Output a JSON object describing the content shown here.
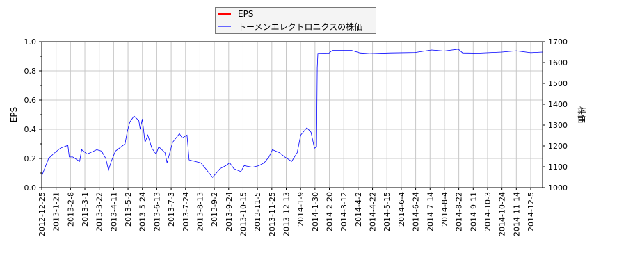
{
  "chart_data": {
    "type": "line",
    "title": "",
    "ylabel": "EPS",
    "y2label": "株価",
    "ylim": [
      0,
      1.0
    ],
    "y2lim": [
      1000,
      1700
    ],
    "yticks": [
      "0.0",
      "0.2",
      "0.4",
      "0.6",
      "0.8",
      "1.0"
    ],
    "y2ticks": [
      "1000",
      "1100",
      "1200",
      "1300",
      "1400",
      "1500",
      "1600",
      "1700"
    ],
    "xticks": [
      "2012-12-25",
      "2013-1-21",
      "2013-2-8",
      "2013-3-1",
      "2013-3-22",
      "2013-4-11",
      "2013-5-2",
      "2013-5-24",
      "2013-6-13",
      "2013-7-3",
      "2013-7-24",
      "2013-8-13",
      "2013-9-2",
      "2013-9-24",
      "2013-10-15",
      "2013-11-5",
      "2013-11-25",
      "2013-12-13",
      "2014-1-9",
      "2014-1-30",
      "2014-2-20",
      "2014-3-12",
      "2014-4-2",
      "2014-4-22",
      "2014-5-15",
      "2014-6-4",
      "2014-6-24",
      "2014-7-14",
      "2014-8-4",
      "2014-8-22",
      "2014-9-11",
      "2014-10-3",
      "2014-10-24",
      "2014-11-14",
      "2014-12-5"
    ],
    "grid": true,
    "legend_placement": "top-center",
    "series": [
      {
        "name": "EPS",
        "color": "#ff0000",
        "axis": "left",
        "points": []
      },
      {
        "name": "トーメンエレクトロニクスの株価",
        "color": "#0000ff",
        "axis": "right",
        "points": [
          [
            "2012-12-25",
            1056
          ],
          [
            "2013-01-04",
            1140
          ],
          [
            "2013-01-12",
            1165
          ],
          [
            "2013-01-21",
            1189
          ],
          [
            "2013-02-01",
            1203
          ],
          [
            "2013-02-03",
            1147
          ],
          [
            "2013-02-08",
            1147
          ],
          [
            "2013-02-18",
            1126
          ],
          [
            "2013-02-21",
            1182
          ],
          [
            "2013-03-01",
            1161
          ],
          [
            "2013-03-15",
            1182
          ],
          [
            "2013-03-22",
            1175
          ],
          [
            "2013-03-28",
            1140
          ],
          [
            "2013-04-01",
            1084
          ],
          [
            "2013-04-05",
            1126
          ],
          [
            "2013-04-11",
            1175
          ],
          [
            "2013-04-25",
            1210
          ],
          [
            "2013-04-28",
            1266
          ],
          [
            "2013-05-02",
            1315
          ],
          [
            "2013-05-08",
            1343
          ],
          [
            "2013-05-15",
            1322
          ],
          [
            "2013-05-17",
            1280
          ],
          [
            "2013-05-20",
            1329
          ],
          [
            "2013-05-24",
            1217
          ],
          [
            "2013-05-28",
            1252
          ],
          [
            "2013-06-03",
            1189
          ],
          [
            "2013-06-09",
            1161
          ],
          [
            "2013-06-13",
            1196
          ],
          [
            "2013-06-22",
            1168
          ],
          [
            "2013-06-25",
            1119
          ],
          [
            "2013-07-03",
            1217
          ],
          [
            "2013-07-13",
            1259
          ],
          [
            "2013-07-17",
            1238
          ],
          [
            "2013-07-24",
            1252
          ],
          [
            "2013-07-27",
            1133
          ],
          [
            "2013-08-13",
            1119
          ],
          [
            "2013-08-20",
            1091
          ],
          [
            "2013-08-30",
            1049
          ],
          [
            "2013-09-10",
            1091
          ],
          [
            "2013-09-18",
            1105
          ],
          [
            "2013-09-24",
            1119
          ],
          [
            "2013-09-30",
            1091
          ],
          [
            "2013-10-10",
            1077
          ],
          [
            "2013-10-15",
            1105
          ],
          [
            "2013-10-27",
            1098
          ],
          [
            "2013-11-05",
            1105
          ],
          [
            "2013-11-13",
            1119
          ],
          [
            "2013-11-20",
            1147
          ],
          [
            "2013-11-25",
            1182
          ],
          [
            "2013-12-05",
            1168
          ],
          [
            "2013-12-13",
            1147
          ],
          [
            "2013-12-23",
            1126
          ],
          [
            "2013-12-31",
            1168
          ],
          [
            "2014-01-05",
            1252
          ],
          [
            "2014-01-14",
            1287
          ],
          [
            "2014-01-20",
            1266
          ],
          [
            "2014-01-25",
            1189
          ],
          [
            "2014-01-28",
            1196
          ],
          [
            "2014-01-29",
            1574
          ],
          [
            "2014-01-30",
            1644
          ],
          [
            "2014-02-15",
            1645
          ],
          [
            "2014-02-20",
            1658
          ],
          [
            "2014-03-20",
            1658
          ],
          [
            "2014-04-01",
            1646
          ],
          [
            "2014-04-15",
            1643
          ],
          [
            "2014-05-15",
            1646
          ],
          [
            "2014-06-20",
            1648
          ],
          [
            "2014-07-14",
            1660
          ],
          [
            "2014-08-01",
            1655
          ],
          [
            "2014-08-22",
            1664
          ],
          [
            "2014-08-28",
            1646
          ],
          [
            "2014-09-20",
            1645
          ],
          [
            "2014-10-24",
            1650
          ],
          [
            "2014-11-14",
            1656
          ],
          [
            "2014-12-05",
            1647
          ],
          [
            "2014-12-22",
            1650
          ]
        ]
      }
    ]
  }
}
